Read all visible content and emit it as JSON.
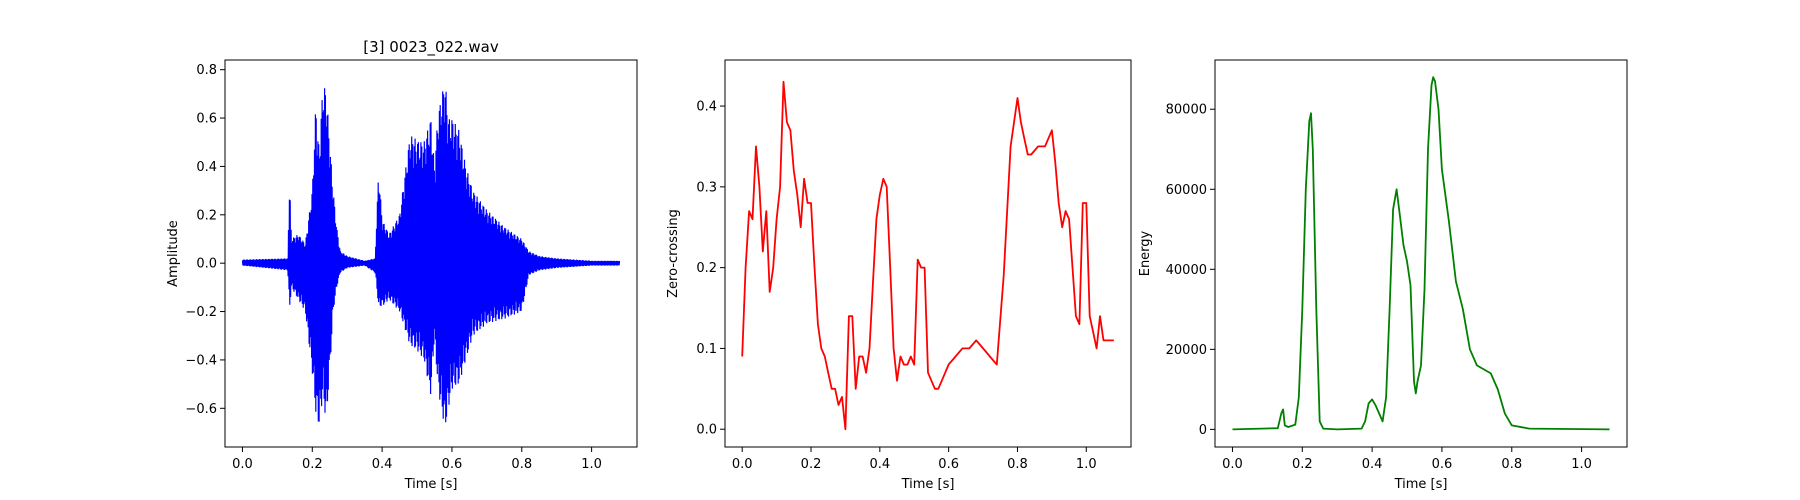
{
  "figure": {
    "background": "#ffffff"
  },
  "chart_data": [
    {
      "type": "line",
      "title": "[3] 0023_022.wav",
      "xlabel": "Time [s]",
      "ylabel": "Amplitude",
      "color": "#0000ff",
      "xlim": [
        -0.05,
        1.13
      ],
      "ylim": [
        -0.76,
        0.84
      ],
      "xticks": [
        0.0,
        0.2,
        0.4,
        0.6,
        0.8,
        1.0
      ],
      "xtick_labels": [
        "0.0",
        "0.2",
        "0.4",
        "0.6",
        "0.8",
        "1.0"
      ],
      "yticks": [
        -0.6,
        -0.4,
        -0.2,
        0.0,
        0.2,
        0.4,
        0.6,
        0.8
      ],
      "ytick_labels": [
        "−0.6",
        "−0.4",
        "−0.2",
        "0.0",
        "0.2",
        "0.4",
        "0.6",
        "0.8"
      ],
      "series": [
        {
          "style": "waveform-envelope",
          "x": [
            0.0,
            0.13,
            0.135,
            0.14,
            0.16,
            0.18,
            0.2,
            0.21,
            0.22,
            0.23,
            0.24,
            0.25,
            0.26,
            0.27,
            0.28,
            0.3,
            0.35,
            0.38,
            0.39,
            0.4,
            0.42,
            0.45,
            0.48,
            0.5,
            0.52,
            0.54,
            0.55,
            0.56,
            0.58,
            0.59,
            0.6,
            0.62,
            0.64,
            0.66,
            0.7,
            0.75,
            0.8,
            0.82,
            0.85,
            0.9,
            1.0,
            1.08
          ],
          "upper": [
            0.015,
            0.02,
            0.36,
            0.1,
            0.12,
            0.08,
            0.3,
            0.66,
            0.46,
            0.74,
            0.72,
            0.5,
            0.3,
            0.15,
            0.05,
            0.03,
            0.01,
            0.02,
            0.39,
            0.18,
            0.12,
            0.2,
            0.53,
            0.51,
            0.5,
            0.6,
            0.4,
            0.62,
            0.76,
            0.6,
            0.6,
            0.55,
            0.4,
            0.3,
            0.22,
            0.15,
            0.1,
            0.05,
            0.03,
            0.02,
            0.01,
            0.01
          ],
          "lower": [
            -0.01,
            -0.03,
            -0.2,
            -0.1,
            -0.15,
            -0.2,
            -0.45,
            -0.62,
            -0.68,
            -0.55,
            -0.66,
            -0.45,
            -0.2,
            -0.1,
            -0.04,
            -0.02,
            -0.01,
            -0.04,
            -0.18,
            -0.18,
            -0.15,
            -0.2,
            -0.34,
            -0.36,
            -0.4,
            -0.55,
            -0.3,
            -0.52,
            -0.69,
            -0.6,
            -0.52,
            -0.5,
            -0.4,
            -0.3,
            -0.25,
            -0.23,
            -0.2,
            -0.05,
            -0.03,
            -0.02,
            -0.01,
            -0.01
          ]
        }
      ]
    },
    {
      "type": "line",
      "title": "",
      "xlabel": "Time [s]",
      "ylabel": "Zero-crossing",
      "color": "#ff0000",
      "xlim": [
        -0.05,
        1.13
      ],
      "ylim": [
        -0.022,
        0.457
      ],
      "xticks": [
        0.0,
        0.2,
        0.4,
        0.6,
        0.8,
        1.0
      ],
      "xtick_labels": [
        "0.0",
        "0.2",
        "0.4",
        "0.6",
        "0.8",
        "1.0"
      ],
      "yticks": [
        0.0,
        0.1,
        0.2,
        0.3,
        0.4
      ],
      "ytick_labels": [
        "0.0",
        "0.1",
        "0.2",
        "0.3",
        "0.4"
      ],
      "series": [
        {
          "x": [
            0.0,
            0.01,
            0.02,
            0.03,
            0.04,
            0.05,
            0.06,
            0.07,
            0.08,
            0.09,
            0.1,
            0.11,
            0.12,
            0.13,
            0.14,
            0.15,
            0.16,
            0.17,
            0.18,
            0.19,
            0.2,
            0.21,
            0.22,
            0.23,
            0.24,
            0.25,
            0.26,
            0.27,
            0.28,
            0.29,
            0.3,
            0.31,
            0.32,
            0.33,
            0.34,
            0.35,
            0.36,
            0.37,
            0.38,
            0.39,
            0.4,
            0.41,
            0.42,
            0.43,
            0.44,
            0.45,
            0.46,
            0.47,
            0.48,
            0.49,
            0.5,
            0.51,
            0.52,
            0.53,
            0.54,
            0.55,
            0.56,
            0.57,
            0.58,
            0.59,
            0.6,
            0.62,
            0.64,
            0.66,
            0.68,
            0.7,
            0.72,
            0.74,
            0.76,
            0.78,
            0.8,
            0.81,
            0.82,
            0.83,
            0.84,
            0.86,
            0.88,
            0.9,
            0.91,
            0.92,
            0.93,
            0.94,
            0.95,
            0.96,
            0.97,
            0.98,
            0.99,
            1.0,
            1.01,
            1.02,
            1.03,
            1.04,
            1.05,
            1.06,
            1.07,
            1.08
          ],
          "y": [
            0.09,
            0.2,
            0.27,
            0.26,
            0.35,
            0.3,
            0.22,
            0.27,
            0.17,
            0.2,
            0.26,
            0.3,
            0.43,
            0.38,
            0.37,
            0.32,
            0.29,
            0.25,
            0.31,
            0.28,
            0.28,
            0.2,
            0.13,
            0.1,
            0.09,
            0.07,
            0.05,
            0.05,
            0.03,
            0.04,
            0.0,
            0.14,
            0.14,
            0.05,
            0.09,
            0.09,
            0.07,
            0.1,
            0.18,
            0.26,
            0.29,
            0.31,
            0.3,
            0.2,
            0.1,
            0.06,
            0.09,
            0.08,
            0.08,
            0.09,
            0.08,
            0.21,
            0.2,
            0.2,
            0.07,
            0.06,
            0.05,
            0.05,
            0.06,
            0.07,
            0.08,
            0.09,
            0.1,
            0.1,
            0.11,
            0.1,
            0.09,
            0.08,
            0.19,
            0.35,
            0.41,
            0.38,
            0.36,
            0.34,
            0.34,
            0.35,
            0.35,
            0.37,
            0.33,
            0.28,
            0.25,
            0.27,
            0.26,
            0.2,
            0.14,
            0.13,
            0.28,
            0.28,
            0.14,
            0.12,
            0.1,
            0.14,
            0.11,
            0.11,
            0.11,
            0.11
          ]
        }
      ]
    },
    {
      "type": "line",
      "title": "",
      "xlabel": "Time [s]",
      "ylabel": "Energy",
      "color": "#008000",
      "xlim": [
        -0.05,
        1.13
      ],
      "ylim": [
        -4400,
        92300
      ],
      "xticks": [
        0.0,
        0.2,
        0.4,
        0.6,
        0.8,
        1.0
      ],
      "xtick_labels": [
        "0.0",
        "0.2",
        "0.4",
        "0.6",
        "0.8",
        "1.0"
      ],
      "yticks": [
        0,
        20000,
        40000,
        60000,
        80000
      ],
      "ytick_labels": [
        "0",
        "20000",
        "40000",
        "60000",
        "80000"
      ],
      "series": [
        {
          "x": [
            0.0,
            0.13,
            0.14,
            0.145,
            0.15,
            0.16,
            0.18,
            0.19,
            0.2,
            0.21,
            0.22,
            0.225,
            0.23,
            0.24,
            0.25,
            0.26,
            0.3,
            0.37,
            0.38,
            0.39,
            0.4,
            0.41,
            0.42,
            0.43,
            0.44,
            0.45,
            0.46,
            0.47,
            0.48,
            0.49,
            0.5,
            0.51,
            0.52,
            0.525,
            0.53,
            0.54,
            0.55,
            0.56,
            0.57,
            0.575,
            0.58,
            0.59,
            0.6,
            0.62,
            0.64,
            0.66,
            0.68,
            0.7,
            0.72,
            0.74,
            0.76,
            0.78,
            0.8,
            0.85,
            1.08
          ],
          "y": [
            0,
            300,
            4000,
            5000,
            1000,
            600,
            1200,
            8000,
            30000,
            60000,
            77000,
            79000,
            70000,
            30000,
            2000,
            200,
            0,
            200,
            2000,
            6500,
            7500,
            6000,
            4000,
            2000,
            8000,
            30000,
            55000,
            60000,
            53000,
            46000,
            42000,
            36000,
            12000,
            9000,
            12000,
            16000,
            35000,
            70000,
            86000,
            88000,
            87000,
            80000,
            65000,
            52000,
            37000,
            30000,
            20000,
            16000,
            15000,
            14000,
            10000,
            4000,
            1000,
            200,
            0
          ]
        }
      ]
    }
  ]
}
